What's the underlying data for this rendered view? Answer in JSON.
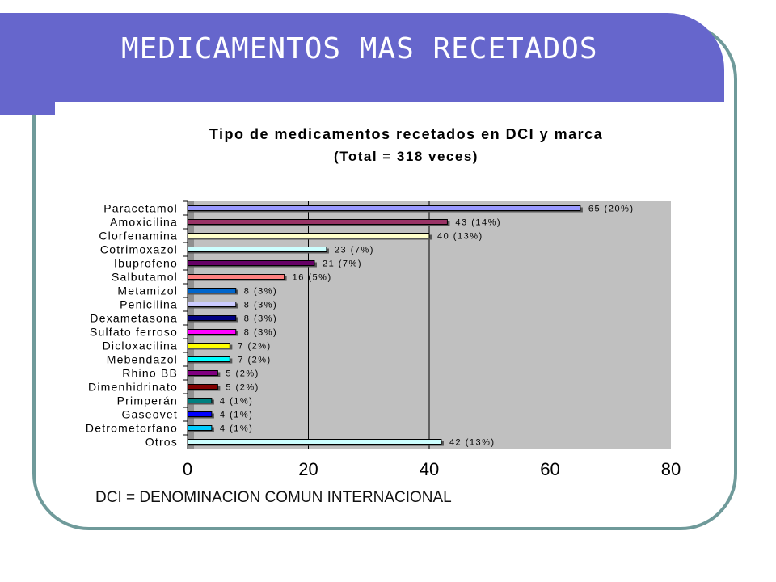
{
  "slide": {
    "title": "MEDICAMENTOS MAS RECETADOS",
    "footnote": "DCI = DENOMINACION COMUN INTERNACIONAL"
  },
  "colors": {
    "banner": "#6666cc",
    "frame": "#6f9a9a",
    "plot_area": "#c0c0c0"
  },
  "chart_data": {
    "type": "bar",
    "orientation": "horizontal",
    "title": "Tipo de medicamentos recetados en DCI y marca",
    "subtitle": "(Total = 318 veces)",
    "categories": [
      "Paracetamol",
      "Amoxicilina",
      "Clorfenamina",
      "Cotrimoxazol",
      "Ibuprofeno",
      "Salbutamol",
      "Metamizol",
      "Penicilina",
      "Dexametasona",
      "Sulfato ferroso",
      "Dicloxacilina",
      "Mebendazol",
      "Rhino BB",
      "Dimenhidrinato",
      "Primperán",
      "Gaseovet",
      "Detrometorfano",
      "Otros"
    ],
    "values": [
      65,
      43,
      40,
      23,
      21,
      16,
      8,
      8,
      8,
      8,
      7,
      7,
      5,
      5,
      4,
      4,
      4,
      42
    ],
    "data_labels": [
      "65 (20%)",
      "43 (14%)",
      "40 (13%)",
      "23 (7%)",
      "21 (7%)",
      "16 (5%)",
      "8 (3%)",
      "8 (3%)",
      "8 (3%)",
      "8 (3%)",
      "7 (2%)",
      "7 (2%)",
      "5 (2%)",
      "5 (2%)",
      "4 (1%)",
      "4 (1%)",
      "4 (1%)",
      "42 (13%)"
    ],
    "bar_colors": [
      "#9999ff",
      "#993366",
      "#ffffcc",
      "#ccffff",
      "#660066",
      "#ff8080",
      "#0066cc",
      "#ccccff",
      "#000080",
      "#ff00ff",
      "#ffff00",
      "#00ffff",
      "#800080",
      "#800000",
      "#008080",
      "#0000ff",
      "#00ccff",
      "#ccffff"
    ],
    "xlim": [
      0,
      80
    ],
    "xticks": [
      "0",
      "20",
      "40",
      "60",
      "80"
    ],
    "xlabel": "",
    "ylabel": "",
    "grid": "vertical"
  }
}
